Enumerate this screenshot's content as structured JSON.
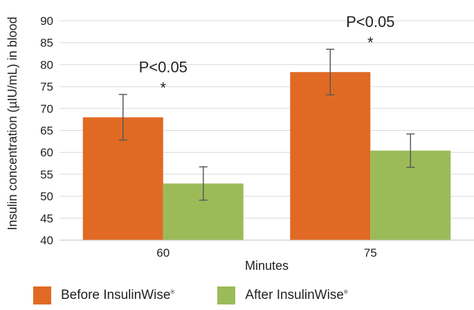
{
  "chart_data": {
    "type": "bar",
    "categories": [
      "60",
      "75"
    ],
    "series": [
      {
        "name": "Before InsulinWise",
        "values": [
          68,
          78.3
        ],
        "error": [
          5.2,
          5.2
        ],
        "color": "#e06a24"
      },
      {
        "name": "After InsulinWise",
        "values": [
          52.9,
          60.4
        ],
        "error": [
          3.8,
          3.8
        ],
        "color": "#9bbb59"
      }
    ],
    "xlabel": "Minutes",
    "ylabel": "Insulin concentration (µIU/mL) in blood",
    "ylim": [
      40,
      90
    ],
    "yticks": [
      "40",
      "45",
      "50",
      "55",
      "60",
      "65",
      "70",
      "75",
      "80",
      "85",
      "90"
    ],
    "grid": true,
    "legend_position": "bottom",
    "annotations": [
      {
        "category": "60",
        "text": "P<0.05",
        "marker": "*"
      },
      {
        "category": "75",
        "text": "P<0.05",
        "marker": "*"
      }
    ]
  },
  "legend": {
    "before": "Before InsulinWise",
    "after": "After InsulinWise",
    "registered": "®"
  }
}
